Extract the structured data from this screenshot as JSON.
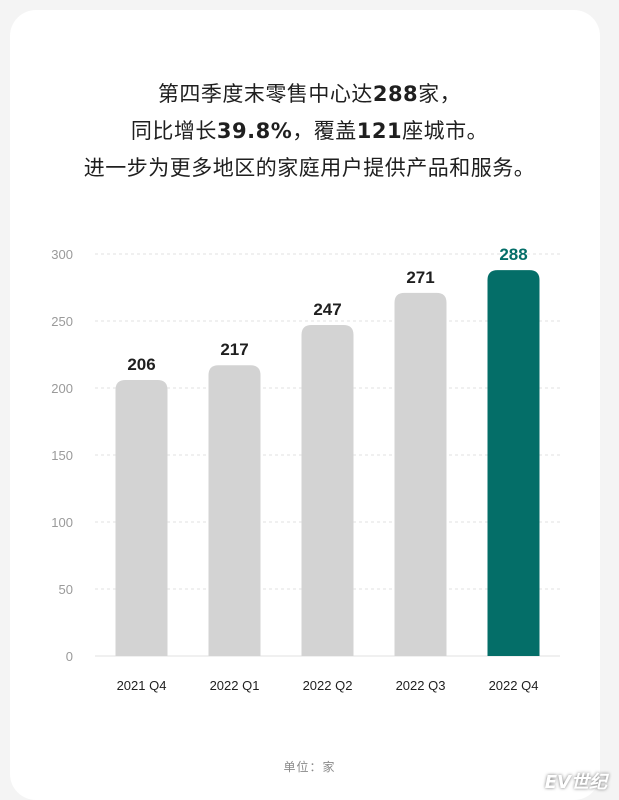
{
  "headline": {
    "line1": {
      "pre": "第四季度末零售中心达",
      "num": "288",
      "post": "家，"
    },
    "line2": {
      "pre": "同比增长",
      "num1": "39.8%",
      "mid": "，覆盖",
      "num2": "121",
      "post": "座城市。"
    },
    "line3": "进一步为更多地区的家庭用户提供产品和服务。"
  },
  "unit_label": "单位：家",
  "watermark": "EV世纪",
  "colors": {
    "bar": "#d3d3d3",
    "highlight": "#046e68",
    "axis_text": "#9a9a9a",
    "grid": "#e2e2e2"
  },
  "chart_data": {
    "type": "bar",
    "categories": [
      "2021 Q4",
      "2022 Q1",
      "2022 Q2",
      "2022 Q3",
      "2022 Q4"
    ],
    "values": [
      206,
      217,
      247,
      271,
      288
    ],
    "data_labels": [
      "206",
      "217",
      "247",
      "271",
      "288"
    ],
    "highlight_index": 4,
    "ylim": [
      0,
      300
    ],
    "yticks": [
      "0",
      "50",
      "100",
      "150",
      "200",
      "250",
      "300"
    ],
    "grid": true,
    "title": "",
    "xlabel": "",
    "ylabel": ""
  }
}
